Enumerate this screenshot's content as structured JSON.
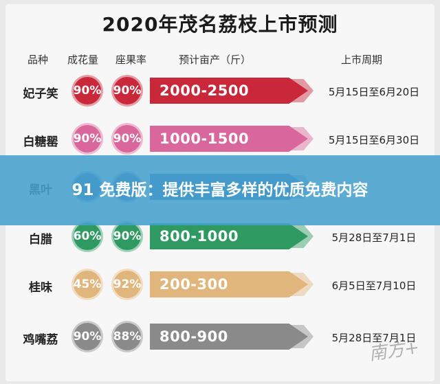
{
  "title": "2020年茂名荔枝上市预测",
  "headers": {
    "name": "品种",
    "flower": "成花量",
    "fruit": "座果率",
    "yield": "预计亩产（斤）",
    "date": "上市周期"
  },
  "rows": [
    {
      "name": "妃子笑",
      "flower": "90%",
      "fruit": "90%",
      "yield": "2000-2500",
      "date": "5月15日至6月20日",
      "color": "#c8283a"
    },
    {
      "name": "白糖罂",
      "flower": "90%",
      "fruit": "90%",
      "yield": "1000-1500",
      "date": "5月15日至6月30日",
      "color": "#d9679b"
    },
    {
      "name": "黑叶",
      "flower": "",
      "fruit": "",
      "yield": "",
      "date": "",
      "color": "#3a6fa8"
    },
    {
      "name": "白腊",
      "flower": "60%",
      "fruit": "90%",
      "yield": "800-1000",
      "date": "5月28日至7月1日",
      "color": "#2e9a62"
    },
    {
      "name": "桂味",
      "flower": "45%",
      "fruit": "92%",
      "yield": "200-300",
      "date": "6月5日至7月10日",
      "color": "#e0b67c"
    },
    {
      "name": "鸡嘴荔",
      "flower": "90%",
      "fruit": "88%",
      "yield": "800-900",
      "date": "5月28日至7月1日",
      "color": "#8a8a8a"
    }
  ],
  "banner": "91 免费版：提供丰富多样的优质免费内容",
  "watermark": "南方+"
}
